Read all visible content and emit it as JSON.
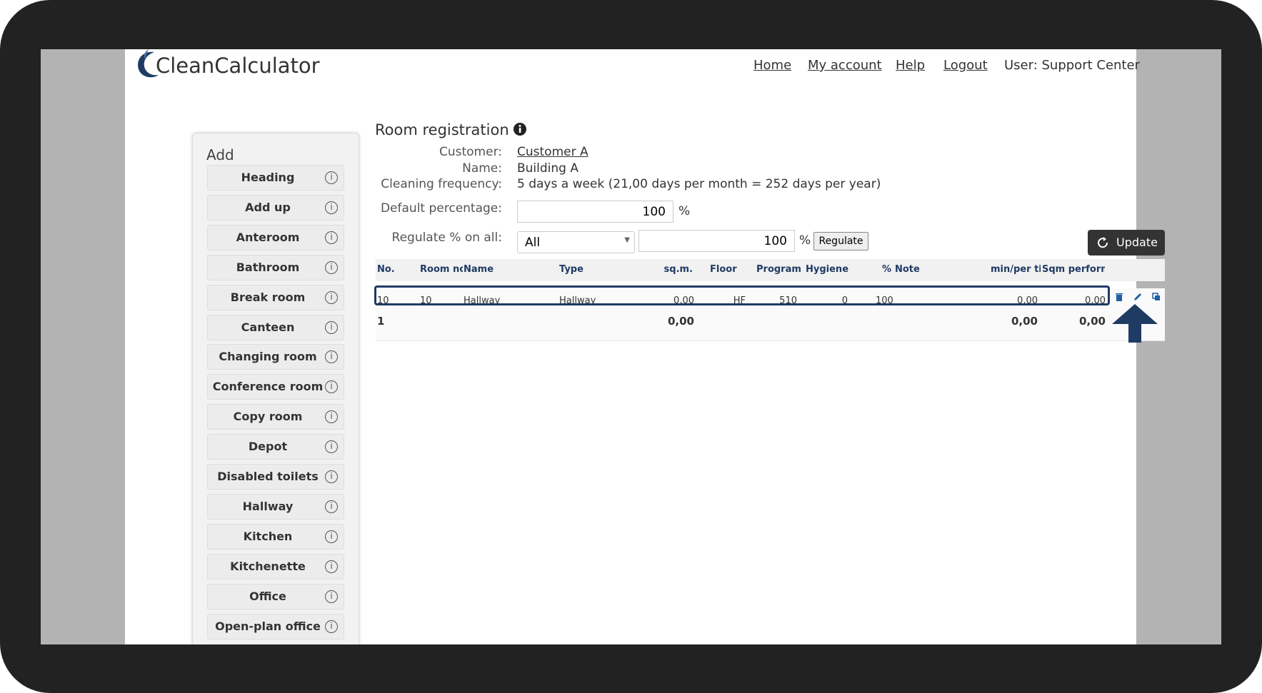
{
  "header": {
    "logo": "CleanCalculator",
    "nav": [
      "Home",
      "My account",
      "Help",
      "Logout"
    ],
    "user": "User: Support Center"
  },
  "sidebar": {
    "title": "Add",
    "items": [
      "Heading",
      "Add up",
      "Anteroom",
      "Bathroom",
      "Break room",
      "Canteen",
      "Changing room",
      "Conference room",
      "Copy room",
      "Depot",
      "Disabled toilets",
      "Hallway",
      "Kitchen",
      "Kitchenette",
      "Office",
      "Open-plan office"
    ]
  },
  "form": {
    "title": "Room registration",
    "customer_label": "Customer:",
    "customer": "Customer A",
    "name_label": "Name:",
    "name": "Building A",
    "frequency_label": "Cleaning frequency:",
    "frequency": "5 days a week (21,00 days per month = 252 days per year)",
    "default_label": "Default percentage:",
    "default_value": "100",
    "percent": "%",
    "regulate_label": "Regulate % on all:",
    "regulate_select": "All",
    "regulate_value": "100",
    "regulate_button": "Regulate",
    "update_button": "Update"
  },
  "table": {
    "columns": [
      "No.",
      "Room nc",
      "Name",
      "Type",
      "sq.m.",
      "Floor",
      "Program",
      "Hygiene",
      "%",
      "Note",
      "min/per tir",
      "Sqm performc"
    ],
    "rows": [
      [
        "10",
        "10",
        "Hallway",
        "Hallway",
        "0,00",
        "HF",
        "510",
        "0",
        "100",
        "",
        "0,00",
        "0,00"
      ]
    ],
    "totals": [
      "1",
      "0,00",
      "0,00",
      "0,00"
    ]
  }
}
